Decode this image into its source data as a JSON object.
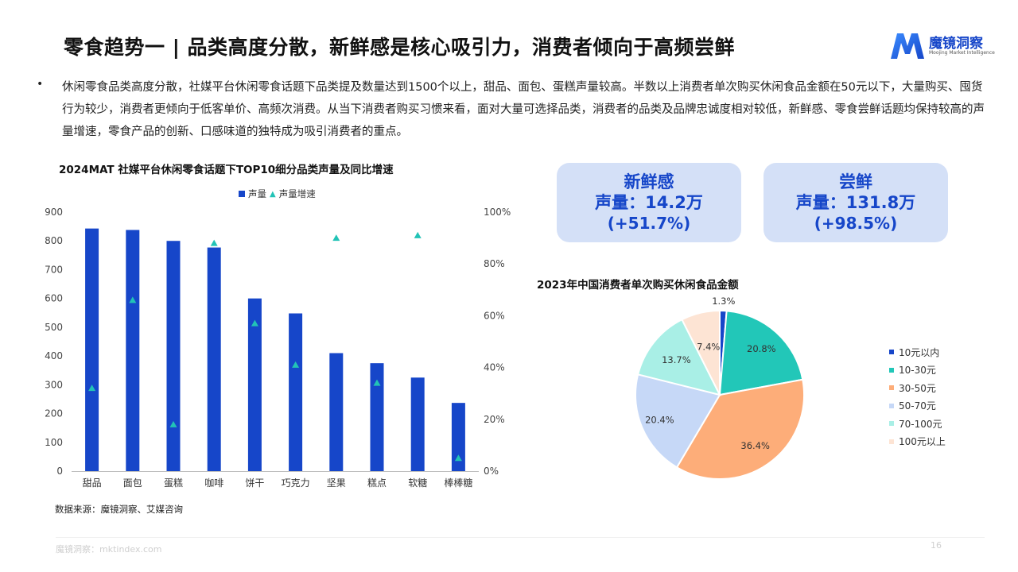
{
  "header": {
    "title": "零食趋势一 | 品类高度分散，新鲜感是核心吸引力，消费者倾向于高频尝鲜",
    "logo_text": "魔镜洞察",
    "logo_sub": "Moojing Market Intelligence"
  },
  "summary": {
    "bullet": "•",
    "text": "休闲零食品类高度分散，社媒平台休闲零食话题下品类提及数量达到1500个以上，甜品、面包、蛋糕声量较高。半数以上消费者单次购买休闲食品金额在50元以下，大量购买、囤货行为较少，消费者更倾向于低客单价、高频次消费。从当下消费者购买习惯来看，面对大量可选择品类，消费者的品类及品牌忠诚度相对较低，新鲜感、零食尝鲜话题均保持较高的声量增速，零食产品的创新、口感味道的独特成为吸引消费者的重点。"
  },
  "cards": [
    {
      "name": "新鲜感",
      "value": "声量：14.2万",
      "change": "(+51.7%)"
    },
    {
      "name": "尝鲜",
      "value": "声量：131.8万",
      "change": "(+98.5%)"
    }
  ],
  "source": "数据来源：魔镜洞察、艾媒咨询",
  "footer": {
    "text": "魔镜洞察：mktindex.com",
    "page": "16"
  },
  "colors": {
    "bar": "#1646c9",
    "marker": "#22c3b6",
    "card_bg": "#d4e0f7",
    "card_text": "#1646c9"
  },
  "chart_data": [
    {
      "type": "bar",
      "title": "2024MAT 社媒平台休闲零食话题下TOP10细分品类声量及同比增速",
      "categories": [
        "甜品",
        "面包",
        "蛋糕",
        "咖啡",
        "饼干",
        "巧克力",
        "坚果",
        "糕点",
        "软糖",
        "棒棒糖"
      ],
      "series": [
        {
          "name": "声量",
          "axis": "left",
          "values": [
            843,
            838,
            800,
            777,
            600,
            548,
            410,
            375,
            325,
            237
          ]
        },
        {
          "name": "声量增速",
          "axis": "right",
          "marker": "triangle",
          "values": [
            0.32,
            0.66,
            0.18,
            0.88,
            0.57,
            0.41,
            0.9,
            0.34,
            0.91,
            0.05
          ]
        }
      ],
      "ylim": [
        0,
        900
      ],
      "yticks": [
        0,
        100,
        200,
        300,
        400,
        500,
        600,
        700,
        800,
        900
      ],
      "y2lim": [
        0,
        1
      ],
      "y2ticks": [
        "0%",
        "20%",
        "40%",
        "60%",
        "80%",
        "100%"
      ],
      "legend": "top",
      "grid": false
    },
    {
      "type": "pie",
      "title": "2023年中国消费者单次购买休闲食品金额",
      "labels": [
        "10元以内",
        "10-30元",
        "30-50元",
        "50-70元",
        "70-100元",
        "100元以上"
      ],
      "values": [
        1.3,
        20.8,
        36.4,
        20.4,
        13.7,
        7.4
      ],
      "value_labels": [
        "1.3%",
        "20.8%",
        "36.4%",
        "20.4%",
        "13.7%",
        "7.4%"
      ],
      "colors": [
        "#1646c9",
        "#22c7b8",
        "#fdad79",
        "#c6d8f7",
        "#a9efe6",
        "#fde4d4"
      ],
      "legend": "right"
    }
  ]
}
